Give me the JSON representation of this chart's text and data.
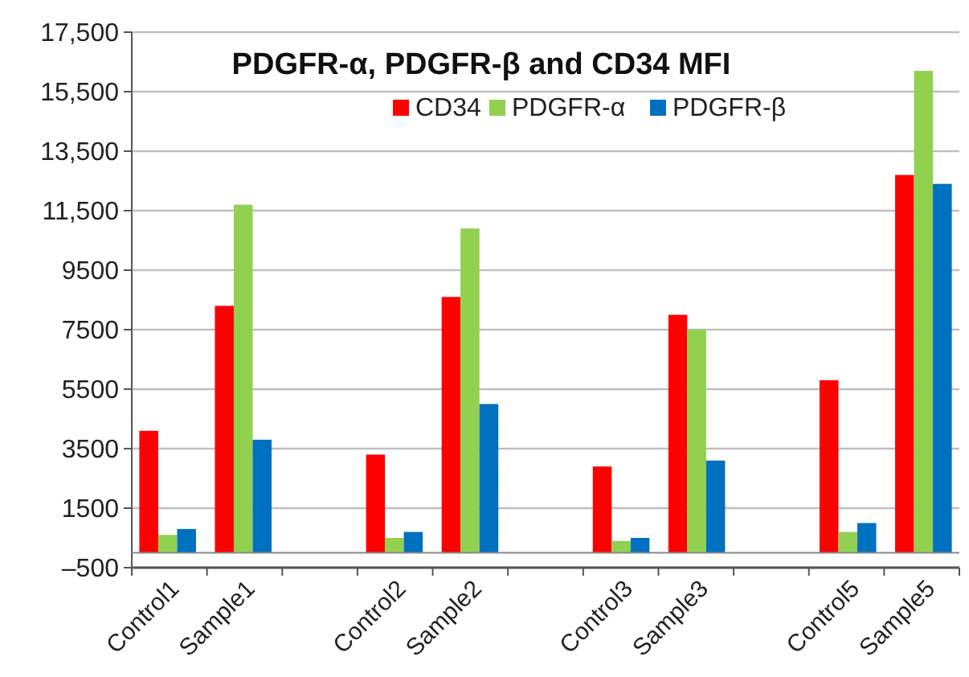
{
  "chart_data": {
    "type": "bar",
    "title": "PDGFR-α, PDGFR-β and CD34  MFI",
    "categories": [
      "Control1",
      "Sample1",
      null,
      "Control2",
      "Sample2",
      null,
      "Control3",
      "Sample3",
      null,
      "Control5",
      "Sample5"
    ],
    "series": [
      {
        "name": "CD34",
        "color": "#ff0000",
        "values": [
          4100,
          8300,
          null,
          3300,
          8600,
          null,
          2900,
          8000,
          null,
          5800,
          12700
        ]
      },
      {
        "name": "PDGFR-α",
        "color": "#92d050",
        "values": [
          600,
          11700,
          null,
          500,
          10900,
          null,
          400,
          7500,
          null,
          700,
          16200
        ]
      },
      {
        "name": "PDGFR-β",
        "color": "#0070c0",
        "values": [
          800,
          3800,
          null,
          700,
          5000,
          null,
          500,
          3100,
          null,
          1000,
          12400
        ]
      }
    ],
    "ylim": [
      -500,
      17500
    ],
    "yticks": [
      {
        "value": -500,
        "label": "–500"
      },
      1500,
      3500,
      5500,
      7500,
      9500,
      {
        "value": 11500,
        "label": "11,500"
      },
      {
        "value": 13500,
        "label": "13,500"
      },
      {
        "value": 15500,
        "label": "15,500"
      },
      {
        "value": 17500,
        "label": "17,500"
      }
    ],
    "grid": "y",
    "legend": "top",
    "ref_lines": [
      {
        "axis": "y",
        "value": 0,
        "label": null,
        "color": "#888888"
      }
    ]
  }
}
